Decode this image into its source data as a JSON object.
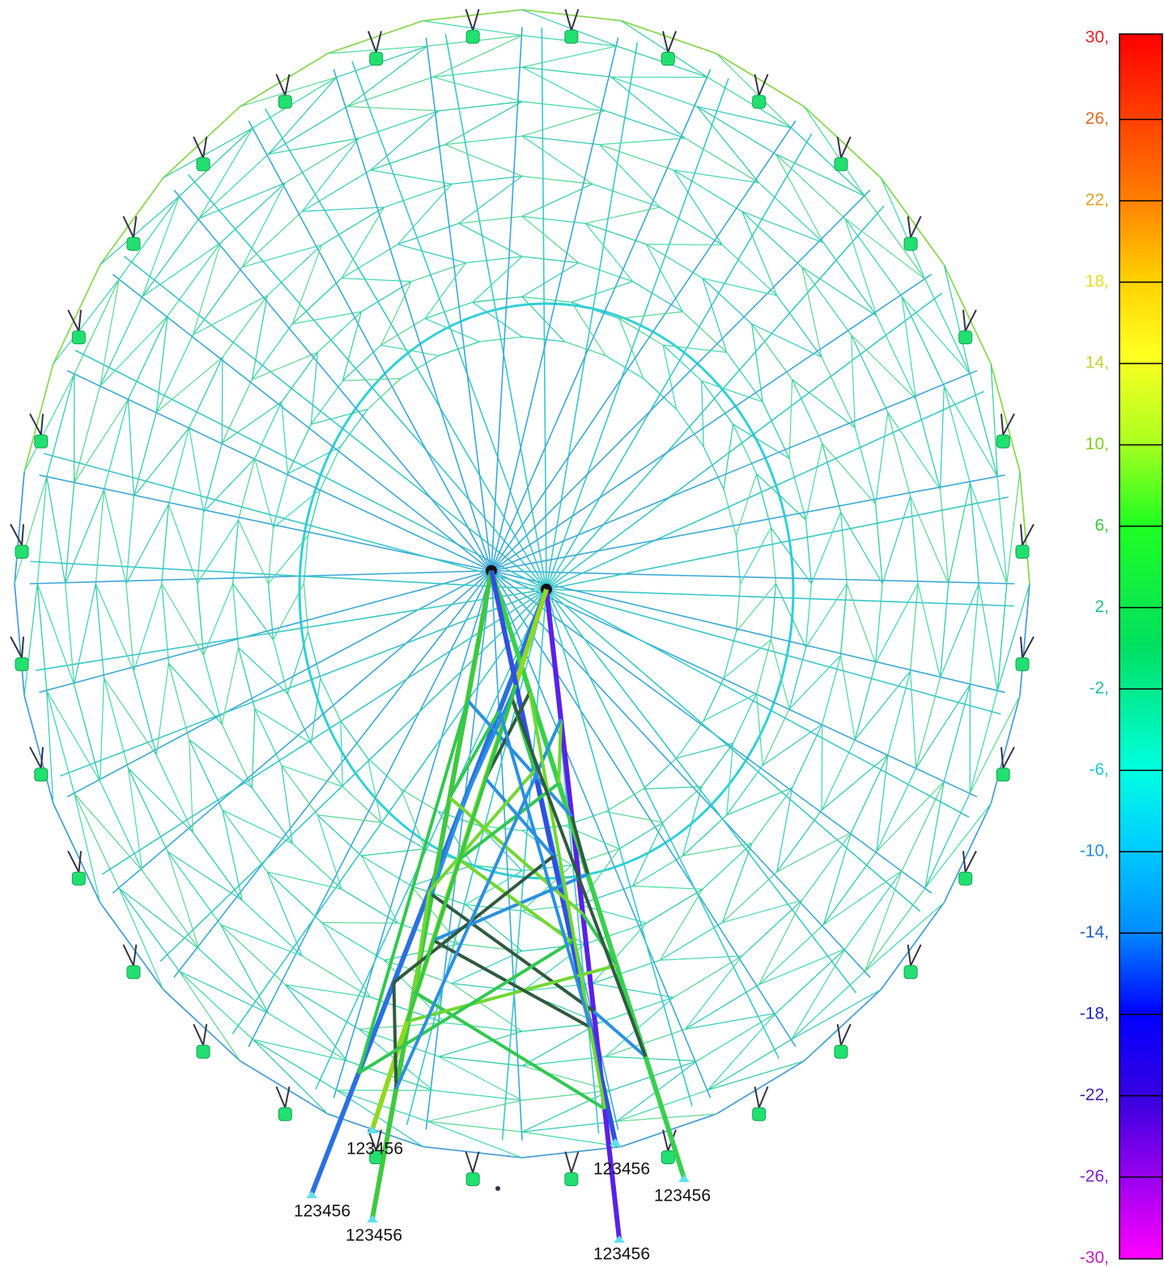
{
  "legend": {
    "labels": [
      "30,",
      "26,",
      "22,",
      "18,",
      "14,",
      "10,",
      "6,",
      "2,",
      "-2,",
      "-6,",
      "-10,",
      "-14,",
      "-18,",
      "-22,",
      "-26,",
      "-30,"
    ]
  },
  "supports": [
    "123456",
    "123456",
    "123456",
    "123456",
    "123456",
    "123456"
  ]
}
